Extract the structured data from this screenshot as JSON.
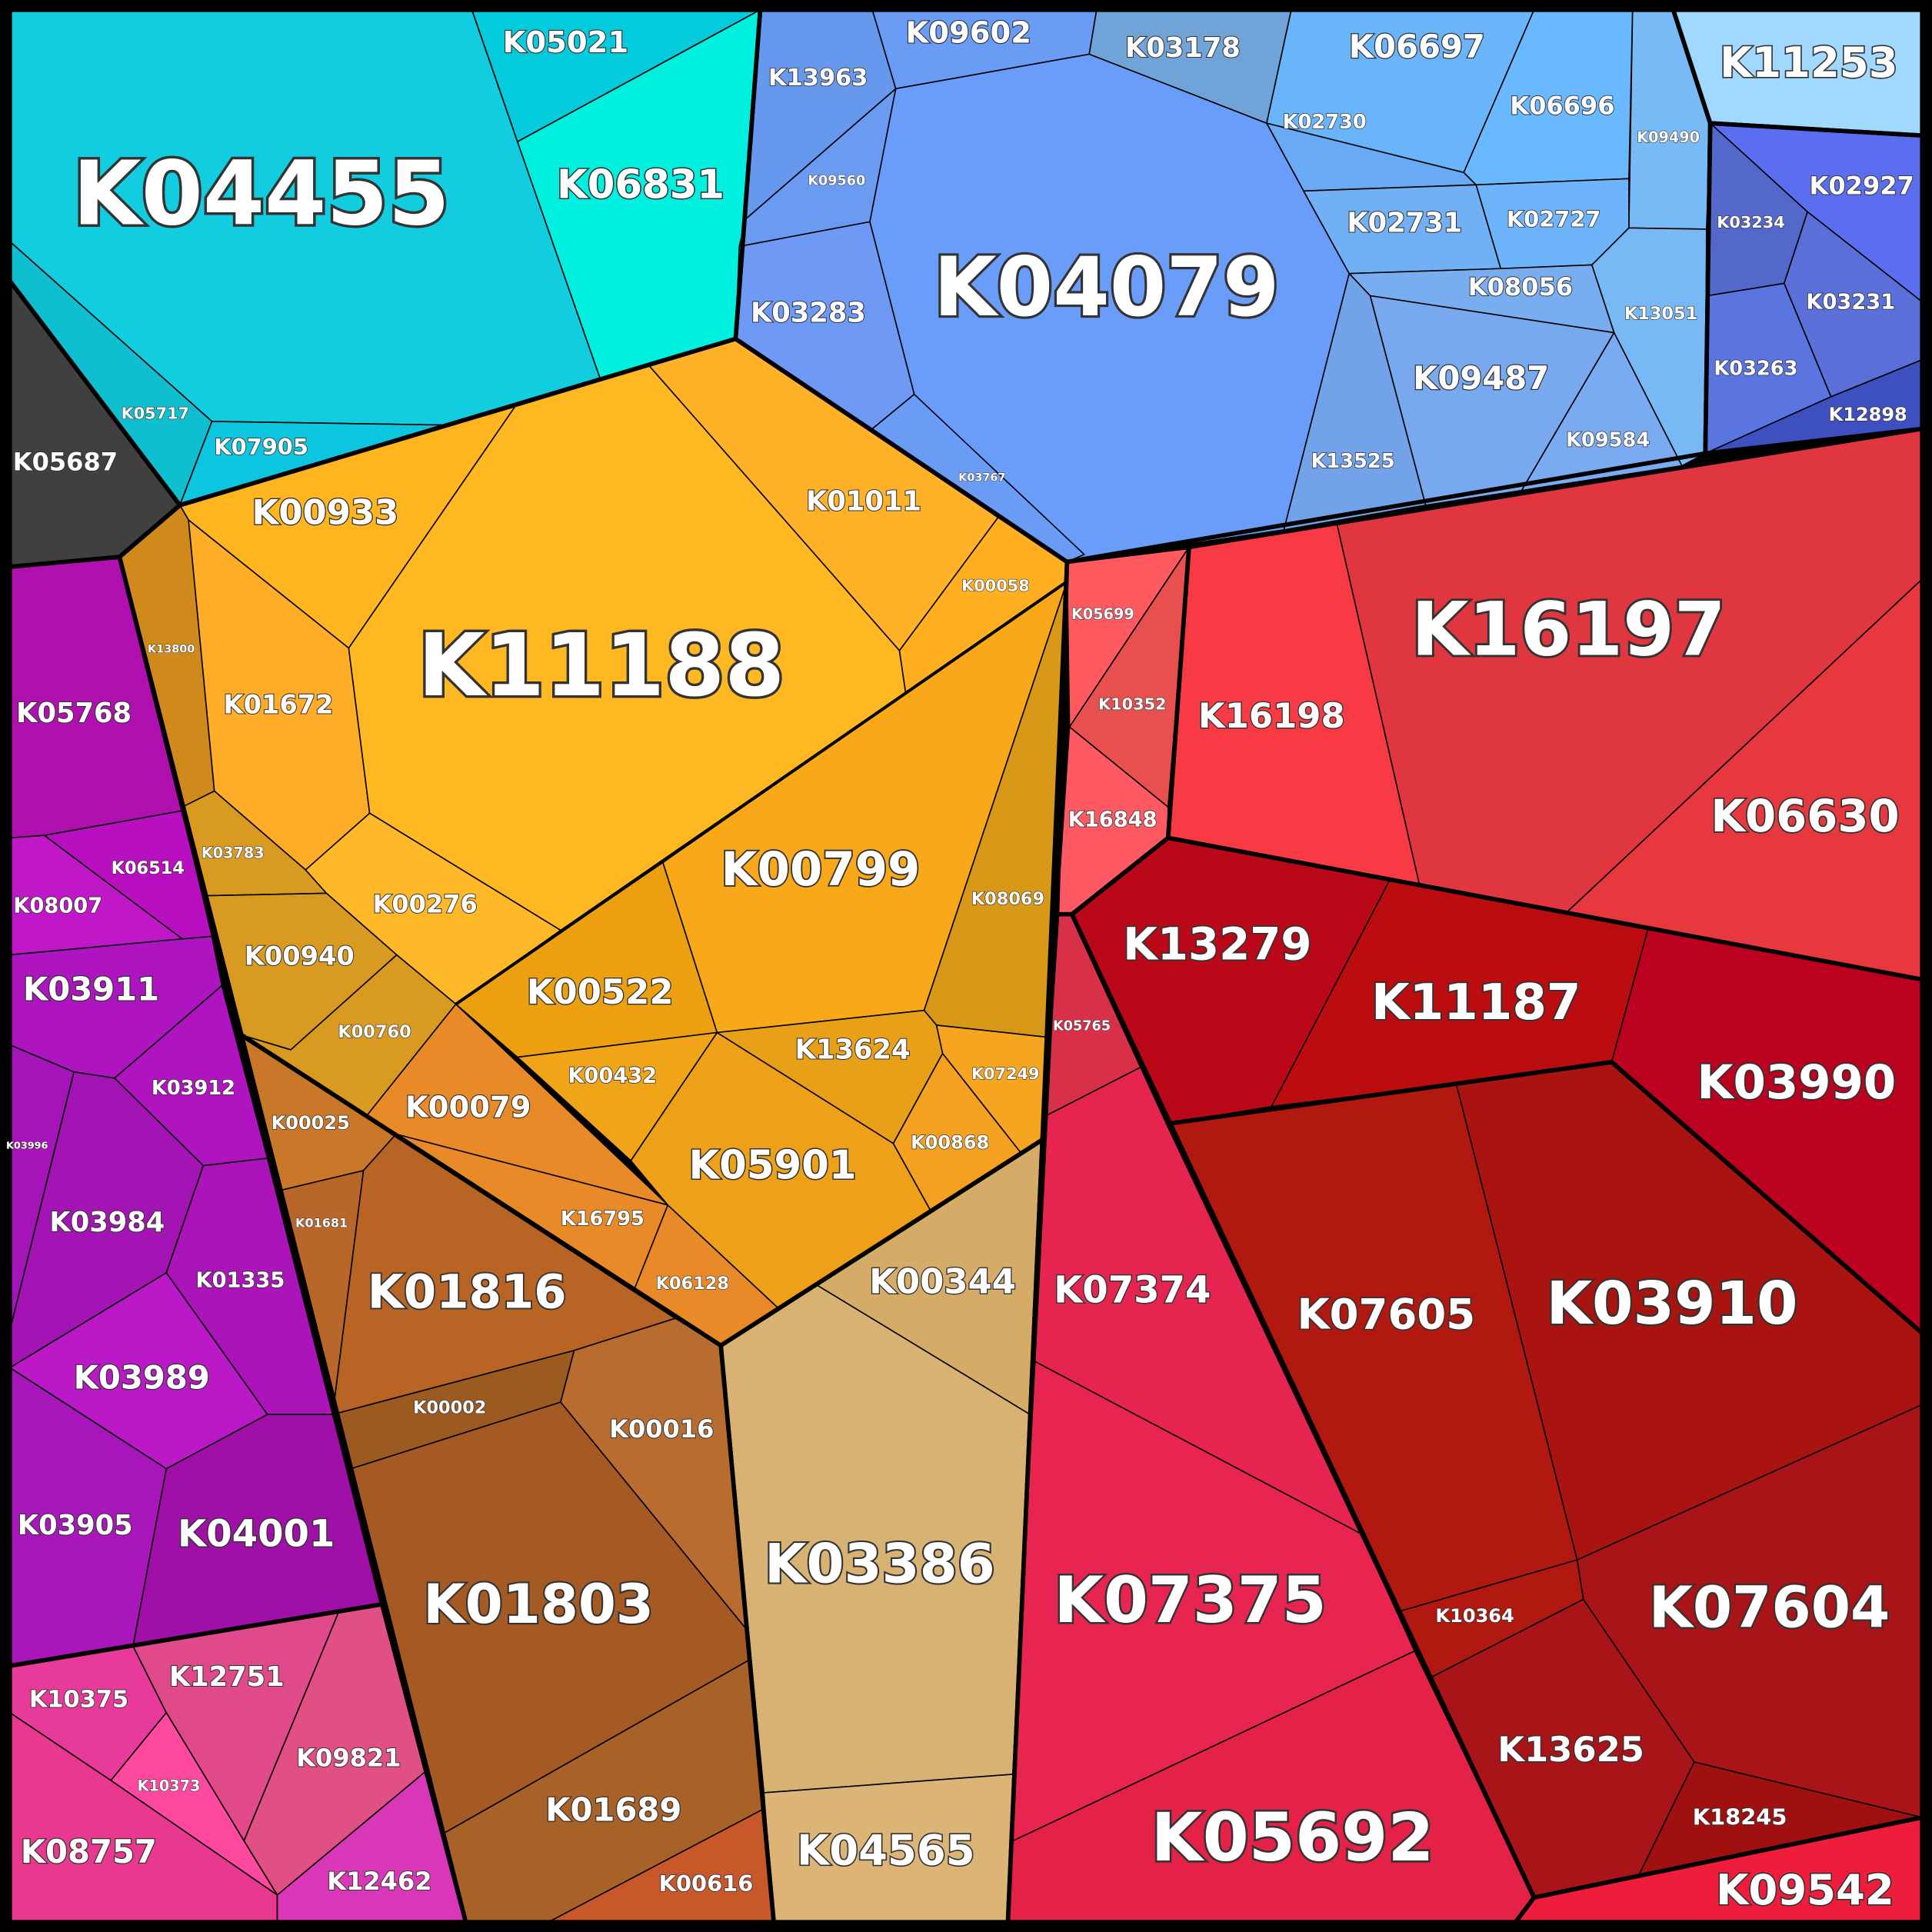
{
  "cells": [
    "K04455",
    "K05021",
    "K06831",
    "K05717",
    "K07905",
    "K05687",
    "K13963",
    "K09602",
    "K03178",
    "K06697",
    "K02730",
    "K06696",
    "K09490",
    "K09560",
    "K03283",
    "K04079",
    "K03767",
    "K02731",
    "K02727",
    "K08056",
    "K13051",
    "K09487",
    "K13525",
    "K09584",
    "K11253",
    "K02927",
    "K03234",
    "K03231",
    "K03263",
    "K12898",
    "K00933",
    "K13800",
    "K01672",
    "K11188",
    "K01011",
    "K00058",
    "K03783",
    "K00276",
    "K00940",
    "K00760",
    "K00079",
    "K16795",
    "K06128",
    "K00522",
    "K00432",
    "K05901",
    "K00799",
    "K08069",
    "K07249",
    "K13624",
    "K00868",
    "K00025",
    "K01681",
    "K01816",
    "K00002",
    "K00016",
    "K01803",
    "K01689",
    "K00616",
    "K00344",
    "K03386",
    "K04565",
    "K05768",
    "K08007",
    "K06514",
    "K03911",
    "K03996",
    "K03912",
    "K03984",
    "K01335",
    "K03989",
    "K03905",
    "K04001",
    "K10375",
    "K12751",
    "K09821",
    "K10373",
    "K08757",
    "K12462",
    "K05699",
    "K10352",
    "K16848",
    "K16198",
    "K16197",
    "K06630",
    "K13279",
    "K11187",
    "K03990",
    "K07605",
    "K03910",
    "K07604",
    "K13625",
    "K18245",
    "K10364",
    "K09542",
    "K05765",
    "K07374",
    "K07375",
    "K05692"
  ]
}
